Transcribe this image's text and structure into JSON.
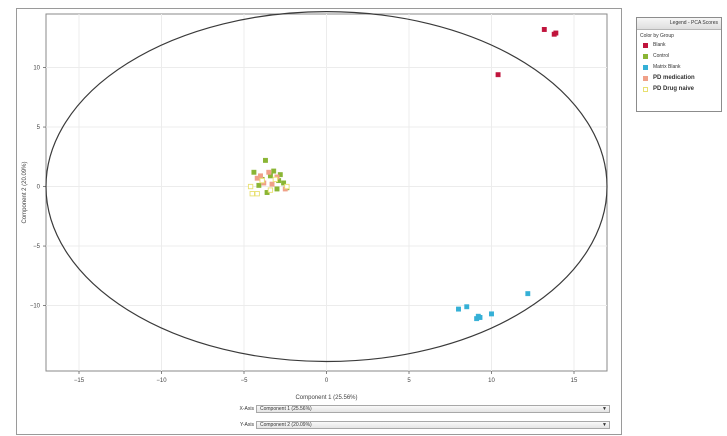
{
  "legend": {
    "title": "Legend - PCA Scores",
    "subtitle": "Color by Group",
    "items": [
      {
        "label": "Blank",
        "color": "#c0143c",
        "filled": true,
        "bold": false
      },
      {
        "label": "Control",
        "color": "#8ab534",
        "filled": true,
        "bold": false
      },
      {
        "label": "Matrix Blank",
        "color": "#35b0d6",
        "filled": true,
        "bold": false
      },
      {
        "label": "PD medication",
        "color": "#f0a088",
        "filled": true,
        "bold": true
      },
      {
        "label": "PD Drug naive",
        "color": "#e8e070",
        "filled": false,
        "bold": true
      }
    ]
  },
  "axis_selectors": {
    "x_label": "X-Axis",
    "x_value": "Component 1 (25.56%)",
    "y_label": "Y-Axis",
    "y_value": "Component 2 (20.09%)"
  },
  "chart_data": {
    "type": "scatter",
    "xlabel": "Component 1 (25.56%)",
    "ylabel": "Component 2 (20.09%)",
    "xlim": [
      -17,
      17
    ],
    "ylim": [
      -15.5,
      14.5
    ],
    "xticks": [
      -15,
      -10,
      -5,
      0,
      5,
      10,
      15
    ],
    "yticks": [
      -10,
      -5,
      0,
      5,
      10
    ],
    "grid": true,
    "ellipse": {
      "cx": 0,
      "cy": 0,
      "rx": 17.0,
      "ry": 14.7
    },
    "series": [
      {
        "name": "Blank",
        "color": "#c0143c",
        "filled": true,
        "points": [
          [
            10.4,
            9.4
          ],
          [
            13.2,
            13.2
          ],
          [
            13.8,
            12.8
          ],
          [
            13.9,
            12.9
          ]
        ]
      },
      {
        "name": "Control",
        "color": "#8ab534",
        "filled": true,
        "points": [
          [
            -3.7,
            2.2
          ],
          [
            -4.4,
            1.2
          ],
          [
            -3.2,
            1.3
          ],
          [
            -2.8,
            1.0
          ],
          [
            -3.9,
            0.6
          ],
          [
            -2.6,
            0.3
          ],
          [
            -3.0,
            -0.2
          ],
          [
            -3.6,
            -0.5
          ],
          [
            -3.4,
            0.9
          ],
          [
            -2.9,
            0.5
          ],
          [
            -4.1,
            0.1
          ],
          [
            -2.4,
            -0.1
          ]
        ]
      },
      {
        "name": "Matrix Blank",
        "color": "#35b0d6",
        "filled": true,
        "points": [
          [
            8.0,
            -10.3
          ],
          [
            8.5,
            -10.1
          ],
          [
            9.1,
            -11.1
          ],
          [
            9.2,
            -10.9
          ],
          [
            9.3,
            -11.0
          ],
          [
            10.0,
            -10.7
          ],
          [
            12.2,
            -9.0
          ]
        ]
      },
      {
        "name": "PD medication",
        "color": "#f0a088",
        "filled": true,
        "points": [
          [
            -4.2,
            0.7
          ],
          [
            -3.5,
            1.2
          ],
          [
            -3.8,
            0.3
          ],
          [
            -3.0,
            0.8
          ],
          [
            -2.5,
            -0.2
          ],
          [
            -3.3,
            0.2
          ],
          [
            -4.0,
            0.9
          ]
        ]
      },
      {
        "name": "PD Drug naive",
        "color": "#e8e070",
        "filled": false,
        "points": [
          [
            -4.6,
            0.0
          ],
          [
            -4.5,
            -0.6
          ],
          [
            -4.2,
            -0.6
          ],
          [
            -3.4,
            -0.3
          ],
          [
            -2.4,
            0.0
          ],
          [
            -3.9,
            0.5
          ],
          [
            -3.1,
            0.6
          ]
        ]
      }
    ]
  }
}
